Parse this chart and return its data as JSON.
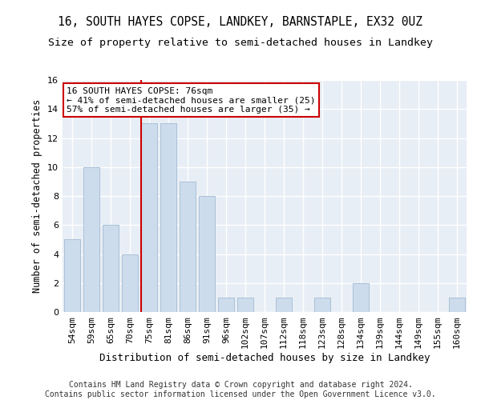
{
  "title1": "16, SOUTH HAYES COPSE, LANDKEY, BARNSTAPLE, EX32 0UZ",
  "title2": "Size of property relative to semi-detached houses in Landkey",
  "xlabel": "Distribution of semi-detached houses by size in Landkey",
  "ylabel": "Number of semi-detached properties",
  "categories": [
    "54sqm",
    "59sqm",
    "65sqm",
    "70sqm",
    "75sqm",
    "81sqm",
    "86sqm",
    "91sqm",
    "96sqm",
    "102sqm",
    "107sqm",
    "112sqm",
    "118sqm",
    "123sqm",
    "128sqm",
    "134sqm",
    "139sqm",
    "144sqm",
    "149sqm",
    "155sqm",
    "160sqm"
  ],
  "values": [
    5,
    10,
    6,
    4,
    13,
    13,
    9,
    8,
    1,
    1,
    0,
    1,
    0,
    1,
    0,
    2,
    0,
    0,
    0,
    0,
    1
  ],
  "bar_color": "#ccdcec",
  "bar_edge_color": "#aac0d8",
  "highlight_index": 4,
  "highlight_line_color": "#cc0000",
  "annotation_text": "16 SOUTH HAYES COPSE: 76sqm\n← 41% of semi-detached houses are smaller (25)\n57% of semi-detached houses are larger (35) →",
  "annotation_box_color": "#ffffff",
  "annotation_box_edge": "#cc0000",
  "ylim": [
    0,
    16
  ],
  "yticks": [
    0,
    2,
    4,
    6,
    8,
    10,
    12,
    14,
    16
  ],
  "footer": "Contains HM Land Registry data © Crown copyright and database right 2024.\nContains public sector information licensed under the Open Government Licence v3.0.",
  "bg_color": "#ffffff",
  "plot_bg_color": "#e8eef5",
  "title1_fontsize": 10.5,
  "title2_fontsize": 9.5,
  "xlabel_fontsize": 9,
  "ylabel_fontsize": 8.5,
  "tick_fontsize": 8,
  "footer_fontsize": 7,
  "grid_color": "#ffffff",
  "annotation_fontsize": 8
}
